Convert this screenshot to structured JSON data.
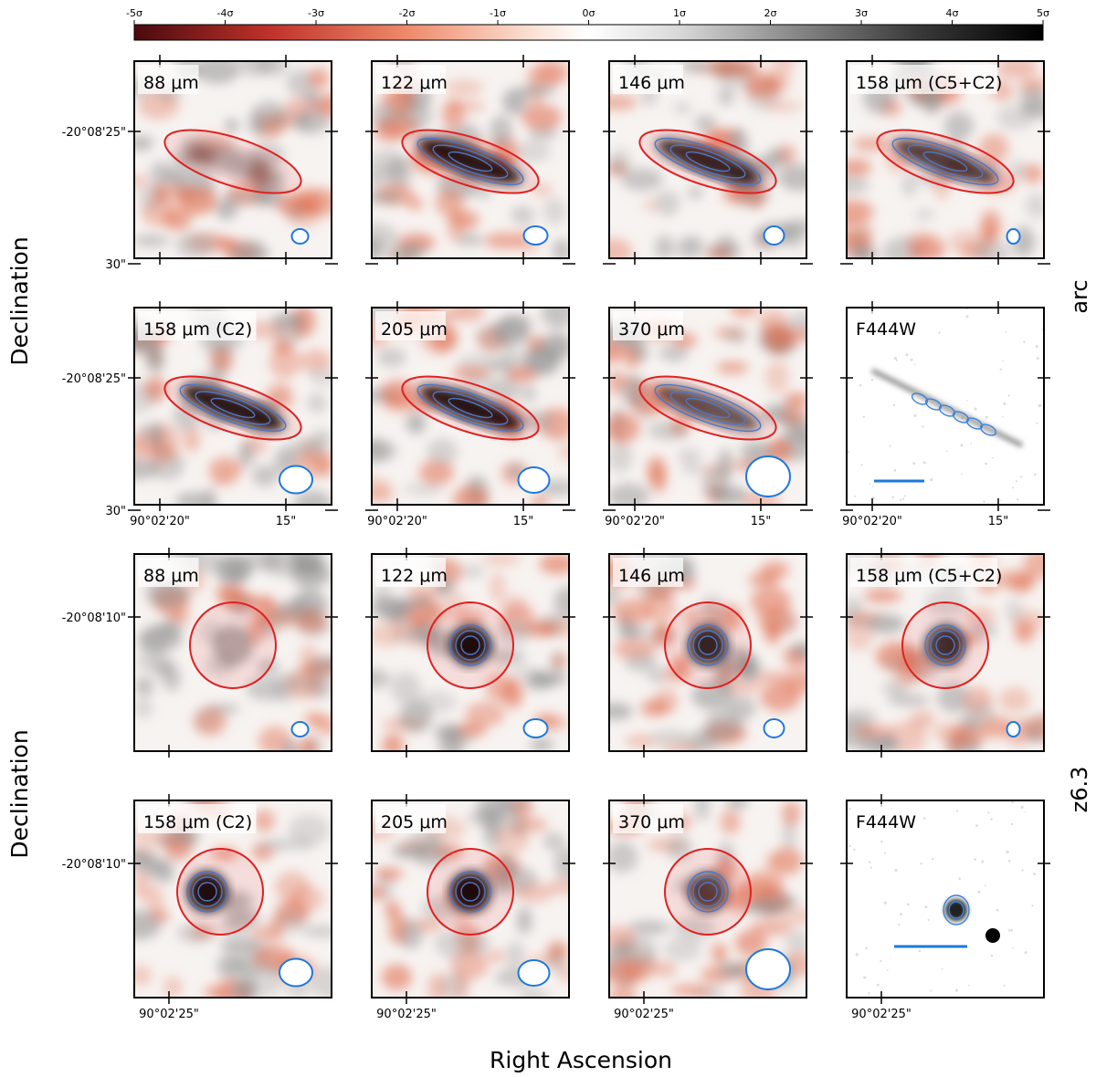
{
  "figure": {
    "colorbar": {
      "ticks": [
        "-5σ",
        "-4σ",
        "-3σ",
        "-2σ",
        "-1σ",
        "0σ",
        "1σ",
        "2σ",
        "3σ",
        "4σ",
        "5σ"
      ],
      "colors": [
        "#4a0a0e",
        "#c0322a",
        "#ee8a6a",
        "#fbe2d6",
        "#ffffff",
        "#d8d8d8",
        "#8c8c8c",
        "#3a3a3a",
        "#000000"
      ]
    },
    "axes": {
      "x_label": "Right Ascension",
      "y_label": "Declination"
    },
    "groups": [
      {
        "name": "arc",
        "dec_ticks": [
          "-20°08'25\"",
          "30\""
        ],
        "ra_ticks": [
          "90°02'20\"",
          "15\""
        ],
        "source_shape": "ellipse",
        "rows": [
          [
            "88 μm",
            "122 μm",
            "146 μm",
            "158 μm (C5+C2)"
          ],
          [
            "158 μm (C2)",
            "205 μm",
            "370 μm",
            "F444W"
          ]
        ]
      },
      {
        "name": "z6.3",
        "dec_ticks": [
          "-20°08'10\""
        ],
        "ra_ticks": [
          "90°02'25\""
        ],
        "source_shape": "circle",
        "rows": [
          [
            "88 μm",
            "122 μm",
            "146 μm",
            "158 μm (C5+C2)"
          ],
          [
            "158 μm (C2)",
            "205 μm",
            "370 μm",
            "F444W"
          ]
        ]
      }
    ],
    "colors": {
      "aperture": "#e02020",
      "contour": "#3c82dc",
      "beam": "#1e78dc",
      "positive": "#1a1a1a",
      "negative": "#e06a4a"
    }
  }
}
